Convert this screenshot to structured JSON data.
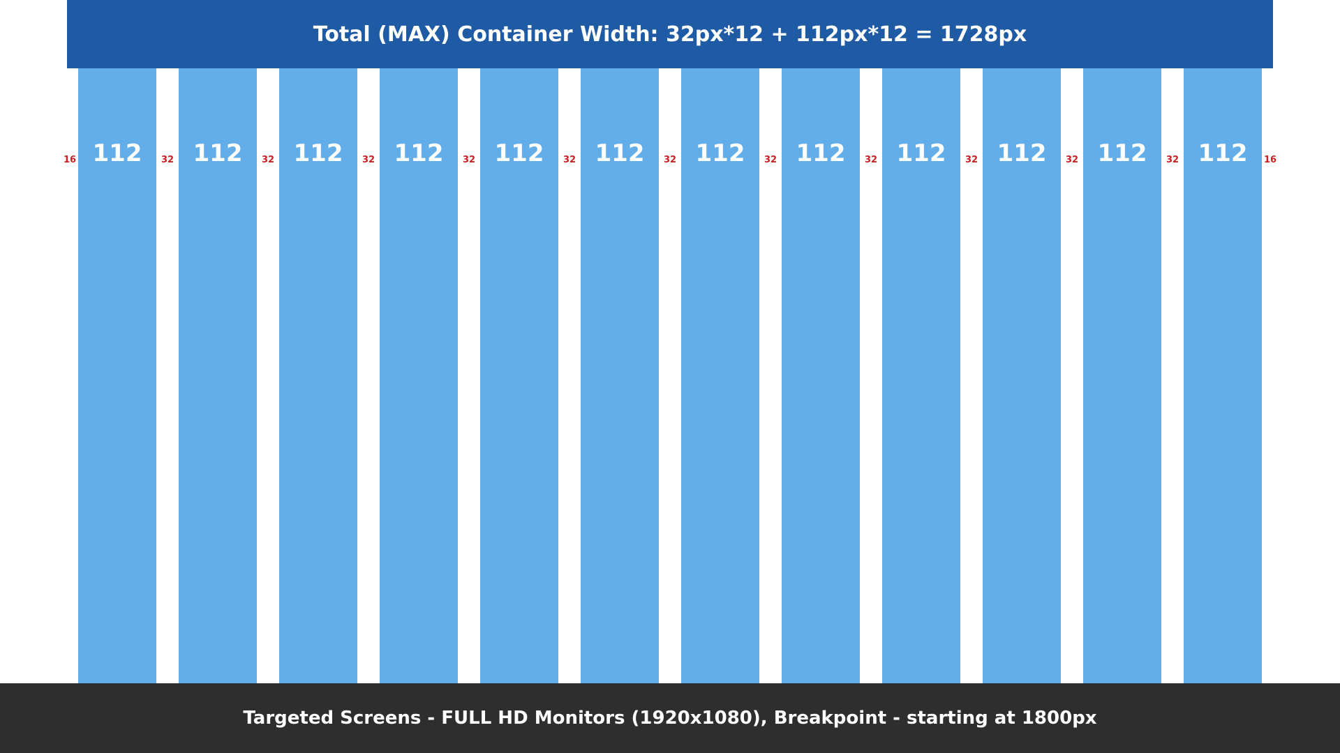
{
  "header": {
    "title": "Total (MAX) Container Width: 32px*12 + 112px*12 = 1728px"
  },
  "grid": {
    "column_label": "112",
    "column_count": 12,
    "edge_gap_label": "16",
    "inner_gap_label": "32"
  },
  "footer": {
    "text": "Targeted Screens - FULL HD Monitors (1920x1080), Breakpoint - starting at 1800px"
  },
  "colors": {
    "header_bg": "#1f5ba4",
    "column": "#63ade8",
    "gap_label": "#cc2020",
    "footer_bg": "#2e2e2e"
  }
}
